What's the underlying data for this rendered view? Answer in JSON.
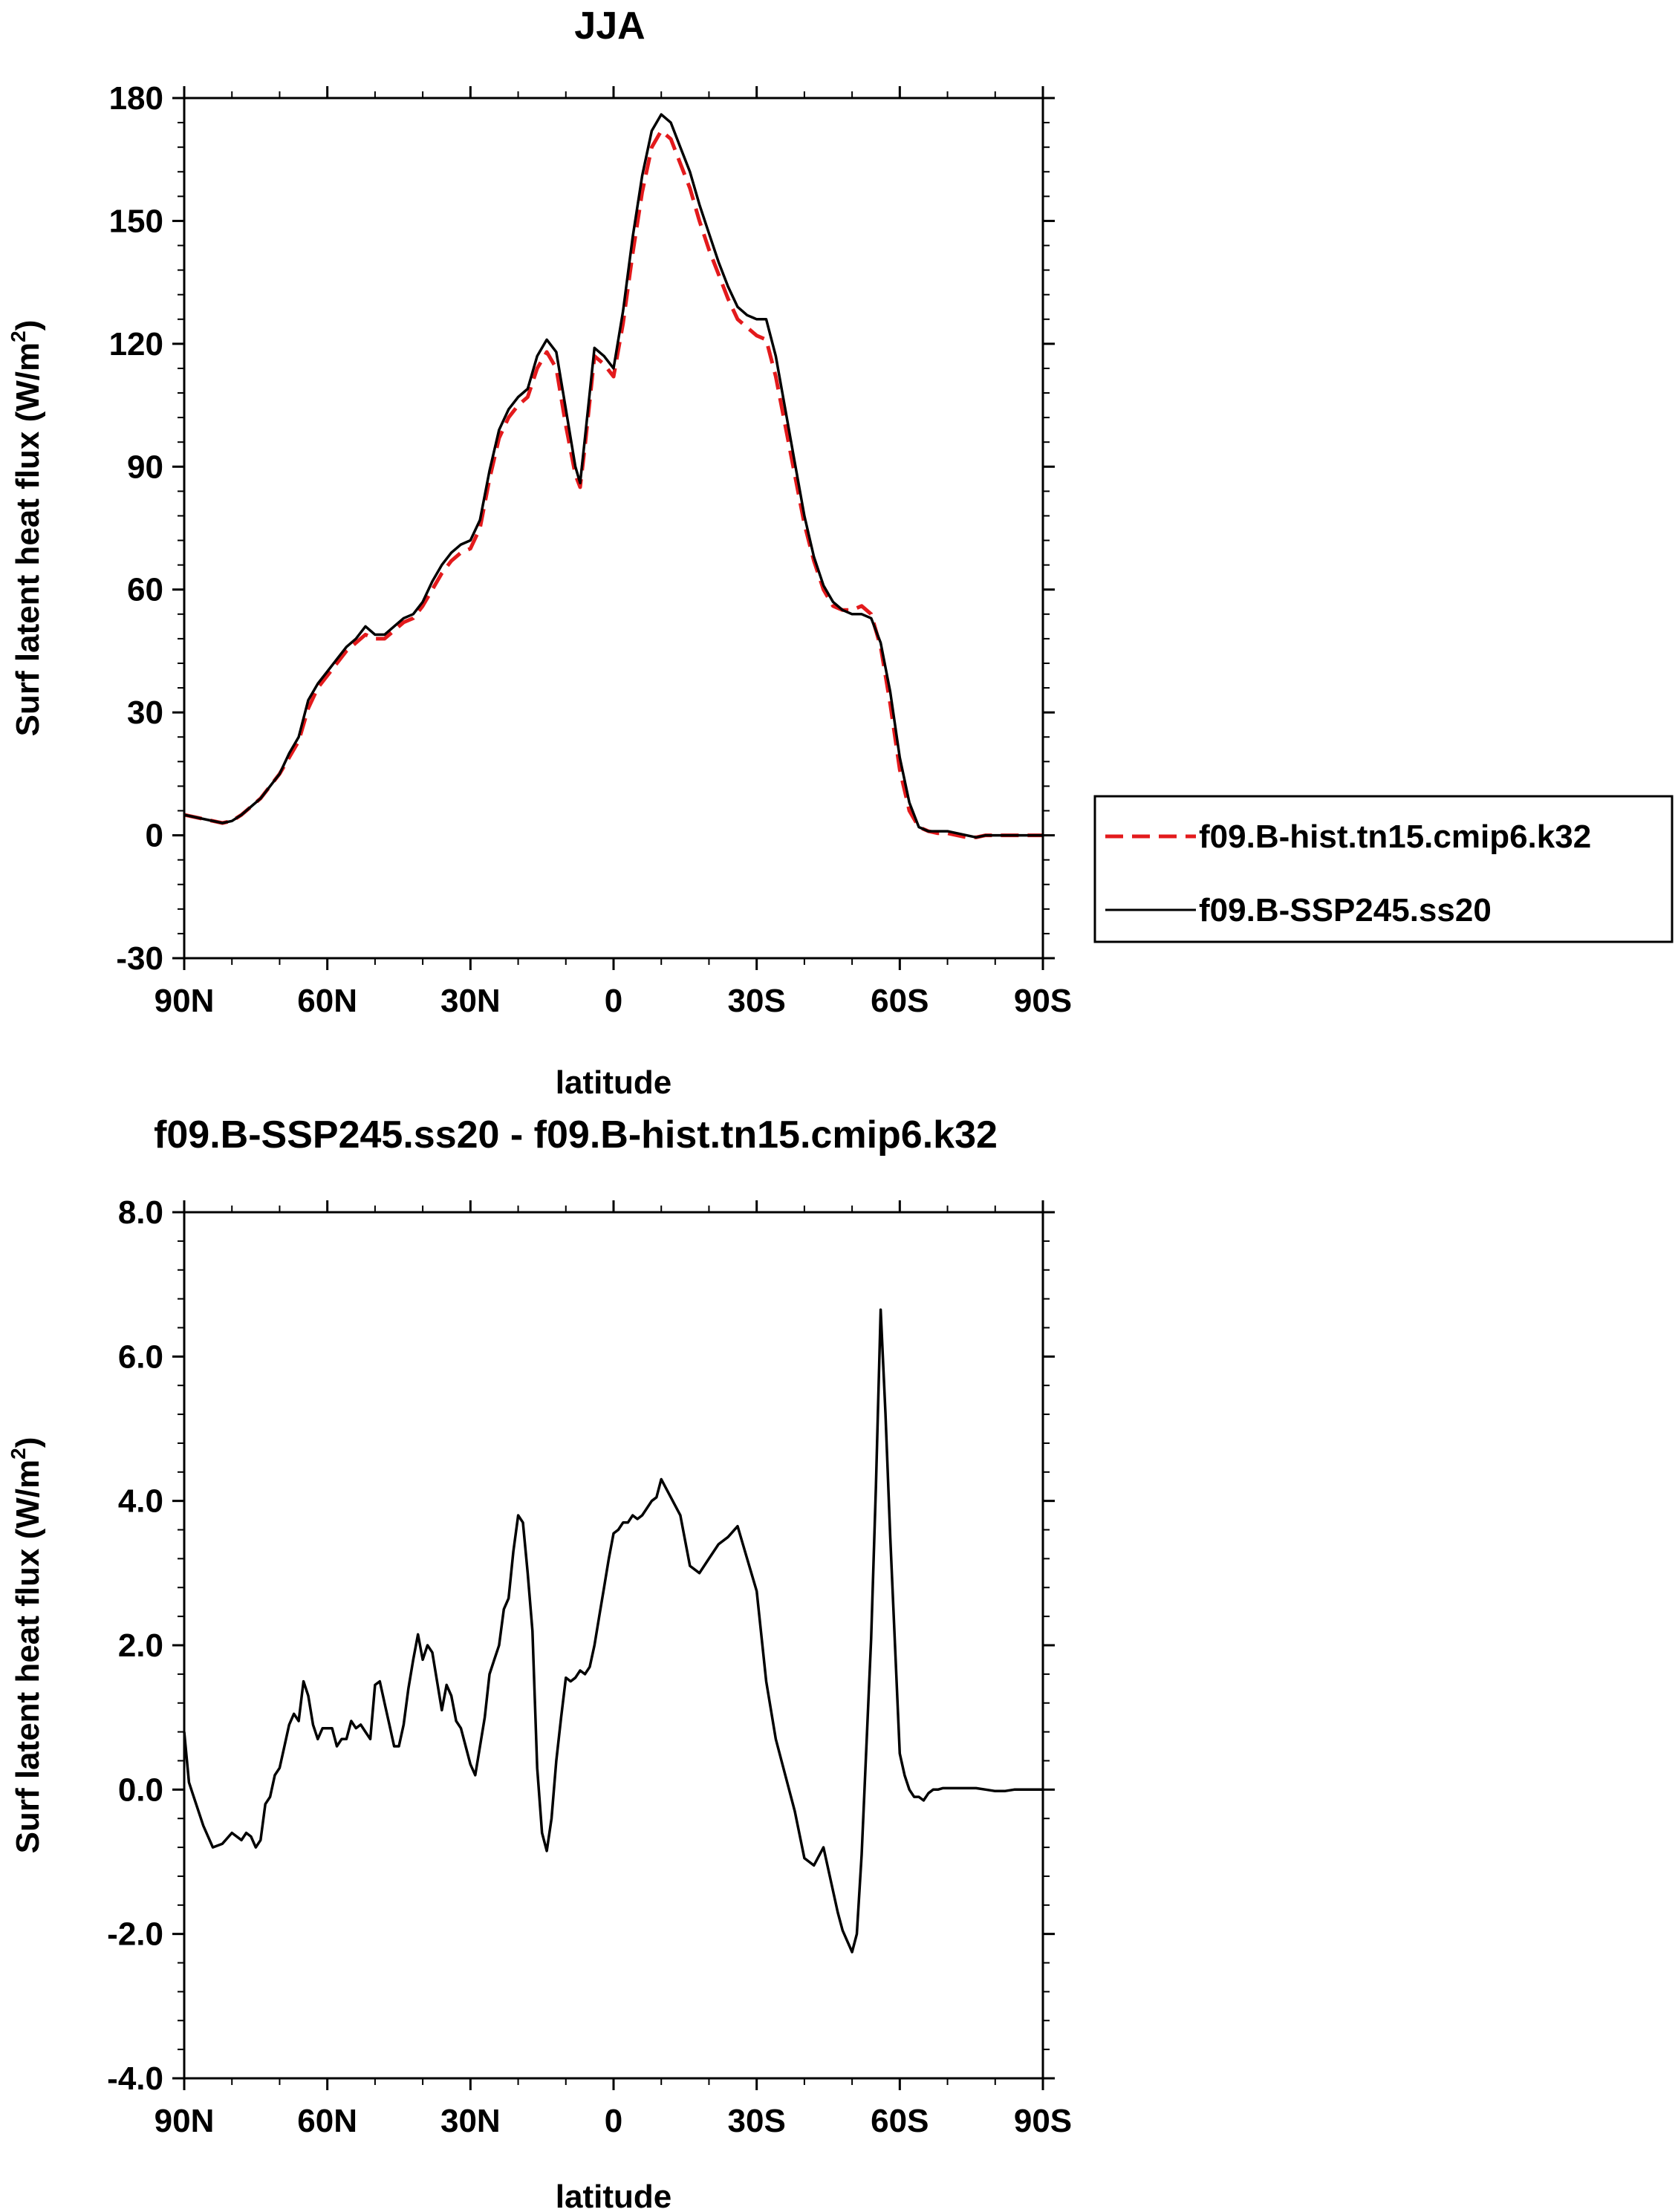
{
  "chart_data": [
    {
      "type": "line",
      "title": "JJA",
      "xlabel": "latitude",
      "ylabel": "Surf latent heat flux",
      "ylabel_unit_base": "(W/m",
      "ylabel_unit_exp": "2",
      "ylabel_unit_close": ")",
      "xlim": [
        90,
        -90
      ],
      "ylim": [
        -30,
        180
      ],
      "xticks": [
        90,
        60,
        30,
        0,
        -30,
        -60,
        -90
      ],
      "xtick_labels": [
        "90N",
        "60N",
        "30N",
        "0",
        "30S",
        "60S",
        "90S"
      ],
      "yticks": [
        -30,
        0,
        30,
        60,
        90,
        120,
        150,
        180
      ],
      "ytick_labels": [
        "-30",
        "0",
        "30",
        "60",
        "90",
        "120",
        "150",
        "180"
      ],
      "legend": "right",
      "series": [
        {
          "name": "f09.B-hist.tn15.cmip6.k32",
          "color": "#e31a1c",
          "dash": "dashed",
          "x": [
            90,
            86,
            82,
            80,
            78,
            76,
            74,
            72,
            70,
            68,
            66,
            64,
            62,
            60,
            58,
            56,
            54,
            52,
            50,
            48,
            46,
            44,
            42,
            40,
            38,
            36,
            34,
            32,
            30,
            28,
            26,
            24,
            22,
            20,
            18,
            16,
            14,
            12,
            10,
            8,
            7,
            6,
            4,
            2,
            0,
            -2,
            -4,
            -6,
            -8,
            -10,
            -12,
            -14,
            -16,
            -18,
            -20,
            -22,
            -24,
            -26,
            -28,
            -30,
            -32,
            -34,
            -36,
            -38,
            -40,
            -42,
            -44,
            -46,
            -48,
            -50,
            -52,
            -54,
            -56,
            -58,
            -60,
            -62,
            -64,
            -66,
            -68,
            -70,
            -72,
            -74,
            -76,
            -78,
            -80,
            -84,
            -88,
            -90
          ],
          "y": [
            5,
            4,
            3,
            3.5,
            5,
            7,
            9,
            12,
            15,
            19,
            23,
            31,
            36,
            39,
            42,
            45,
            47,
            49,
            48,
            48,
            50,
            52,
            53,
            56,
            60,
            64,
            67,
            69,
            70,
            75,
            87,
            97,
            102,
            105,
            107,
            114,
            118,
            114,
            100,
            88,
            85,
            95,
            117,
            115,
            112,
            125,
            142,
            157,
            168,
            172,
            170,
            164,
            158,
            150,
            143,
            137,
            131,
            126,
            124,
            122,
            121,
            112,
            100,
            88,
            76,
            67,
            60,
            56,
            55,
            55,
            56,
            54,
            46,
            32,
            16,
            6,
            2,
            1,
            0.5,
            0.5,
            0,
            -0.5,
            -0.5,
            0,
            0,
            0,
            0,
            0
          ]
        },
        {
          "name": "f09.B-SSP245.ss20",
          "color": "#000000",
          "dash": "solid",
          "x": [
            90,
            86,
            82,
            80,
            78,
            76,
            74,
            72,
            70,
            68,
            66,
            64,
            62,
            60,
            58,
            56,
            54,
            52,
            50,
            48,
            46,
            44,
            42,
            40,
            38,
            36,
            34,
            32,
            30,
            28,
            26,
            24,
            22,
            20,
            18,
            16,
            14,
            12,
            10,
            8,
            7,
            6,
            4,
            2,
            0,
            -2,
            -4,
            -6,
            -8,
            -10,
            -12,
            -14,
            -16,
            -18,
            -20,
            -22,
            -24,
            -26,
            -28,
            -30,
            -32,
            -34,
            -36,
            -38,
            -40,
            -42,
            -44,
            -46,
            -48,
            -50,
            -52,
            -54,
            -56,
            -58,
            -60,
            -62,
            -64,
            -66,
            -68,
            -70,
            -72,
            -74,
            -76,
            -78,
            -80,
            -84,
            -88,
            -90
          ],
          "y": [
            5,
            4,
            3,
            3.5,
            5,
            7,
            9,
            12,
            15,
            20,
            24,
            33,
            37,
            40,
            43,
            46,
            48,
            51,
            49,
            49,
            51,
            53,
            54,
            57,
            62,
            66,
            69,
            71,
            72,
            77,
            89,
            99,
            104,
            107,
            109,
            117,
            121,
            118,
            104,
            90,
            86,
            97,
            119,
            117,
            114,
            128,
            146,
            161,
            172,
            176,
            174,
            168,
            162,
            154,
            147,
            140,
            134,
            129,
            127,
            126,
            126,
            117,
            104,
            91,
            78,
            68,
            61,
            57,
            55,
            54,
            54,
            53,
            47,
            35,
            19,
            8,
            2,
            1,
            1,
            1,
            0.5,
            0,
            -0.5,
            0,
            0,
            0,
            0,
            0
          ]
        }
      ]
    },
    {
      "type": "line",
      "title": "f09.B-SSP245.ss20 - f09.B-hist.tn15.cmip6.k32",
      "xlabel": "latitude",
      "ylabel": "Surf latent heat flux",
      "ylabel_unit_base": "(W/m",
      "ylabel_unit_exp": "2",
      "ylabel_unit_close": ")",
      "xlim": [
        90,
        -90
      ],
      "ylim": [
        -4,
        8
      ],
      "xticks": [
        90,
        60,
        30,
        0,
        -30,
        -60,
        -90
      ],
      "xtick_labels": [
        "90N",
        "60N",
        "30N",
        "0",
        "30S",
        "60S",
        "90S"
      ],
      "yticks": [
        -4,
        -2,
        0,
        2,
        4,
        6,
        8
      ],
      "ytick_labels": [
        "-4.0",
        "-2.0",
        "0.0",
        "2.0",
        "4.0",
        "6.0",
        "8.0"
      ],
      "series": [
        {
          "color": "#000000",
          "dash": "solid",
          "x": [
            90,
            89,
            88,
            86,
            84,
            82,
            80,
            78,
            77,
            76,
            75,
            74,
            73,
            72,
            71,
            70,
            69,
            68,
            67,
            66,
            65,
            64,
            63,
            62,
            61,
            60,
            59,
            58,
            57,
            56,
            55,
            54,
            53,
            52,
            51,
            50,
            49,
            48,
            47,
            46,
            45,
            44,
            43,
            42,
            41,
            40,
            39,
            38,
            37,
            36,
            35,
            34,
            33,
            32,
            31,
            30,
            29,
            28,
            27,
            26,
            25,
            24,
            23,
            22,
            21,
            20,
            19,
            18,
            17,
            16,
            15,
            14,
            13,
            12,
            11,
            10,
            9,
            8,
            7,
            6,
            5,
            4,
            3,
            2,
            1,
            0,
            -1,
            -2,
            -3,
            -4,
            -5,
            -6,
            -7,
            -8,
            -9,
            -10,
            -12,
            -14,
            -16,
            -18,
            -20,
            -22,
            -24,
            -26,
            -28,
            -30,
            -32,
            -34,
            -36,
            -38,
            -40,
            -42,
            -44,
            -46,
            -47,
            -48,
            -49,
            -50,
            -51,
            -52,
            -53,
            -54,
            -55,
            -56,
            -57,
            -58,
            -59,
            -60,
            -61,
            -62,
            -63,
            -64,
            -65,
            -66,
            -67,
            -68,
            -69,
            -70,
            -72,
            -74,
            -76,
            -78,
            -80,
            -82,
            -84,
            -86,
            -88,
            -90
          ],
          "y": [
            0.8,
            0.1,
            -0.1,
            -0.5,
            -0.8,
            -0.75,
            -0.6,
            -0.7,
            -0.6,
            -0.65,
            -0.8,
            -0.7,
            -0.2,
            -0.1,
            0.2,
            0.3,
            0.6,
            0.9,
            1.05,
            0.95,
            1.5,
            1.3,
            0.9,
            0.7,
            0.85,
            0.85,
            0.85,
            0.6,
            0.7,
            0.7,
            0.95,
            0.85,
            0.9,
            0.8,
            0.7,
            1.45,
            1.5,
            1.2,
            0.9,
            0.6,
            0.6,
            0.9,
            1.4,
            1.8,
            2.15,
            1.8,
            2.0,
            1.9,
            1.5,
            1.1,
            1.45,
            1.3,
            0.95,
            0.85,
            0.6,
            0.35,
            0.2,
            0.6,
            1.0,
            1.6,
            1.8,
            2.0,
            2.5,
            2.65,
            3.3,
            3.8,
            3.7,
            3.0,
            2.2,
            0.3,
            -0.6,
            -0.85,
            -0.4,
            0.4,
            1.0,
            1.55,
            1.5,
            1.55,
            1.65,
            1.6,
            1.7,
            2.0,
            2.4,
            2.8,
            3.2,
            3.55,
            3.6,
            3.7,
            3.7,
            3.8,
            3.75,
            3.8,
            3.9,
            4.0,
            4.05,
            4.3,
            4.05,
            3.8,
            3.1,
            3.0,
            3.2,
            3.4,
            3.5,
            3.65,
            3.2,
            2.75,
            1.5,
            0.7,
            0.2,
            -0.3,
            -0.95,
            -1.05,
            -0.8,
            -1.4,
            -1.7,
            -1.95,
            -2.1,
            -2.25,
            -2.0,
            -0.9,
            0.6,
            2.1,
            4.2,
            6.65,
            5.2,
            3.5,
            2.0,
            0.5,
            0.2,
            0.0,
            -0.1,
            -0.1,
            -0.15,
            -0.05,
            0.0,
            0.0,
            0.02,
            0.02,
            0.02,
            0.02,
            0.02,
            0.0,
            -0.02,
            -0.02,
            0.0,
            0.0,
            0.0,
            0.0
          ]
        }
      ]
    }
  ]
}
